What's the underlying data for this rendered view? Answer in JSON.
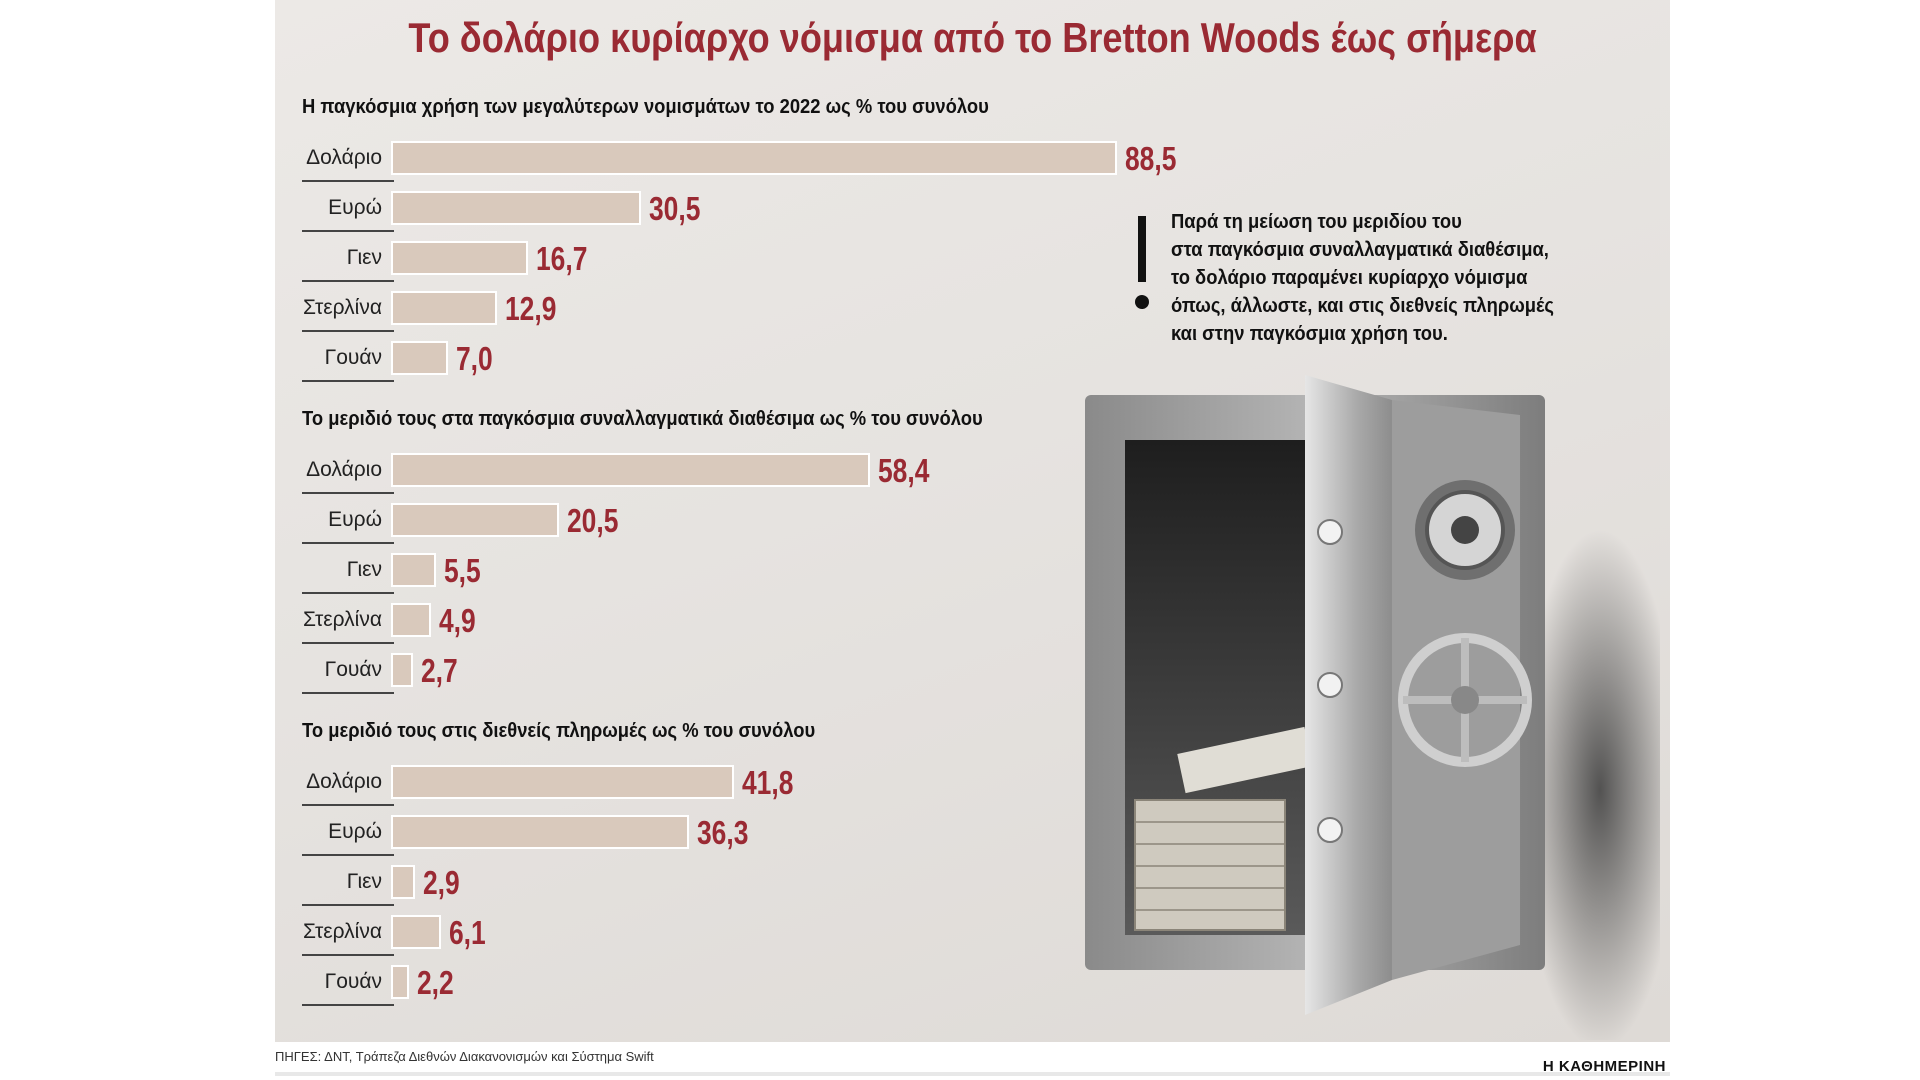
{
  "title": "Το δολάριο κυρίαρχο νόμισμα από το Bretton Woods έως σήμερα",
  "chart_data": [
    {
      "type": "bar",
      "orientation": "horizontal",
      "title": "Η παγκόσμια χρήση των μεγαλύτερων νομισμάτων το 2022 ως % του συνόλου",
      "categories": [
        "Δολάριο",
        "Ευρώ",
        "Γιεν",
        "Στερλίνα",
        "Γουάν"
      ],
      "values": [
        88.5,
        30.5,
        16.7,
        12.9,
        7.0
      ],
      "labels": [
        "88,5",
        "30,5",
        "16,7",
        "12,9",
        "7,0"
      ]
    },
    {
      "type": "bar",
      "orientation": "horizontal",
      "title": "Το μεριδιό τους στα παγκόσμια συναλλαγματικά διαθέσιμα ως % του συνόλου",
      "categories": [
        "Δολάριο",
        "Ευρώ",
        "Γιεν",
        "Στερλίνα",
        "Γουάν"
      ],
      "values": [
        58.4,
        20.5,
        5.5,
        4.9,
        2.7
      ],
      "labels": [
        "58,4",
        "20,5",
        "5,5",
        "4,9",
        "2,7"
      ]
    },
    {
      "type": "bar",
      "orientation": "horizontal",
      "title": "Το μεριδιό τους στις διεθνείς πληρωμές ως % του συνόλου",
      "categories": [
        "Δολάριο",
        "Ευρώ",
        "Γιεν",
        "Στερλίνα",
        "Γουάν"
      ],
      "values": [
        41.8,
        36.3,
        2.9,
        6.1,
        2.2
      ],
      "labels": [
        "41,8",
        "36,3",
        "2,9",
        "6,1",
        "2,2"
      ]
    }
  ],
  "note": "Παρά τη μείωση του μεριδίου του\nστα παγκόσμια συναλλαγματικά διαθέσιμα,\nτο δολάριο παραμένει κυρίαρχο νόμισμα\nόπως, άλλωστε, και στις διεθνείς πληρωμές\nκαι στην παγκόσμια χρήση του.",
  "colors": {
    "title": "#9a2a33",
    "bar": "#d9c9bc",
    "value": "#9a2a33"
  },
  "footer": {
    "source": "ΠΗΓΕΣ: ΔΝΤ, Τράπεζα Διεθνών Διακανονισμών και Σύστημα Swift",
    "brand": "Η ΚΑΘΗΜΕΡΙΝΗ"
  }
}
